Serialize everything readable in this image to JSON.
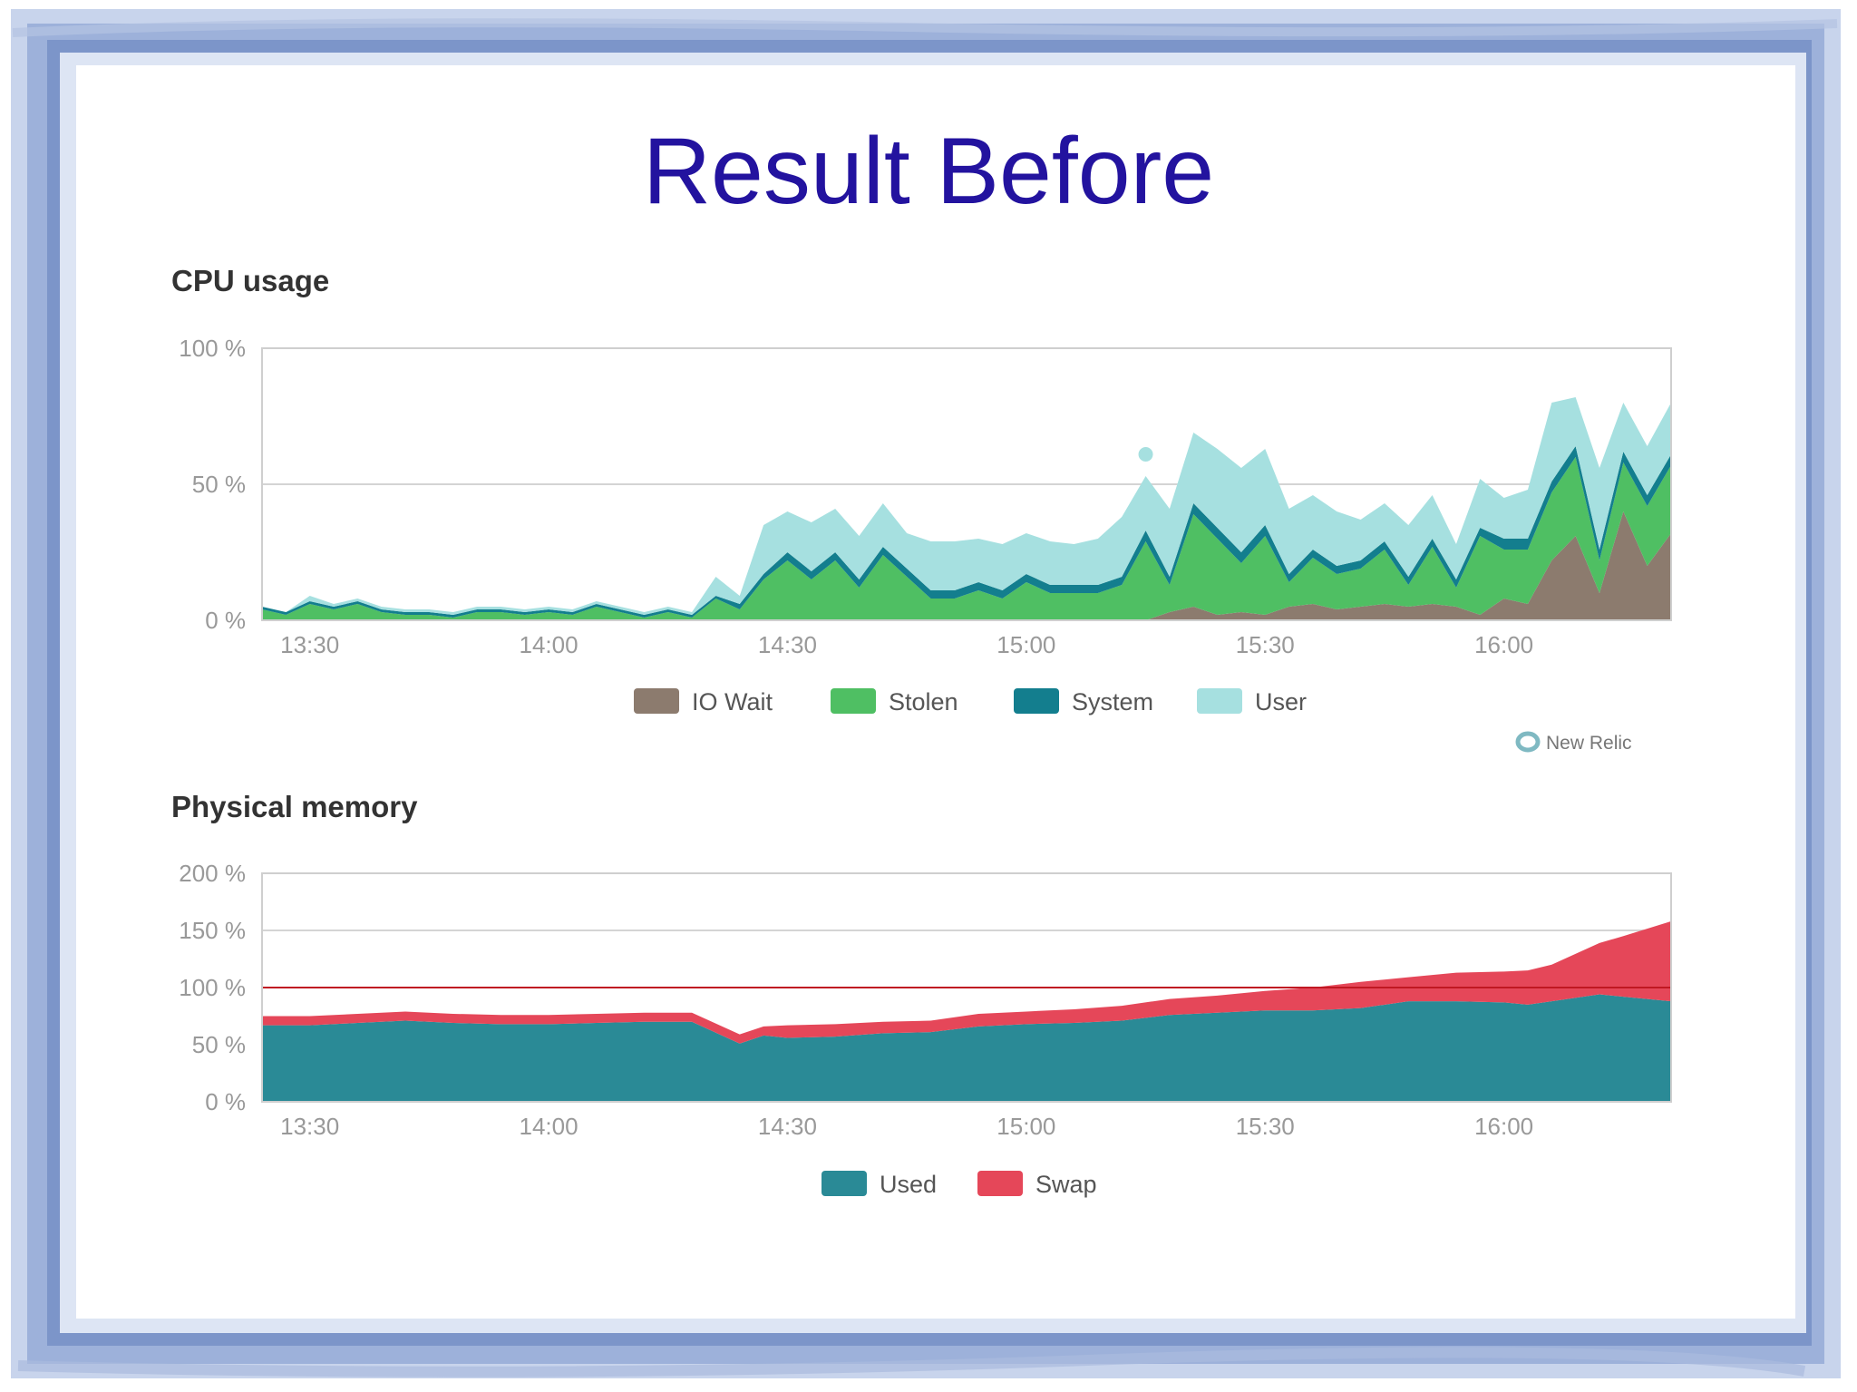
{
  "slide": {
    "title": "Result Before"
  },
  "colors": {
    "io_wait": "#8c7b6e",
    "stolen": "#4fbf63",
    "system": "#137e8e",
    "user": "#a6e0e0",
    "used": "#2a8a96",
    "swap": "#e54759",
    "limit_line": "#c01822",
    "title": "#23139f",
    "frame": "#8fa6d2"
  },
  "branding": {
    "text": "New Relic",
    "icon": "new-relic-ring-icon"
  },
  "chart_data": [
    {
      "type": "area",
      "stacked": true,
      "title": "CPU usage",
      "y_ticks": [
        "0 %",
        "50 %",
        "100 %"
      ],
      "ylim": [
        0,
        100
      ],
      "x_tick_labels": [
        "13:30",
        "14:00",
        "14:30",
        "15:00",
        "15:30",
        "16:00"
      ],
      "x_ticks": [
        "13:30",
        "14:00",
        "14:30",
        "15:00",
        "15:30",
        "16:00"
      ],
      "xlim": [
        "13:24",
        "16:21"
      ],
      "grid": "horizontal",
      "legend": "bottom",
      "x": [
        "13:24",
        "13:27",
        "13:30",
        "13:33",
        "13:36",
        "13:39",
        "13:42",
        "13:45",
        "13:48",
        "13:51",
        "13:54",
        "13:57",
        "14:00",
        "14:03",
        "14:06",
        "14:09",
        "14:12",
        "14:15",
        "14:18",
        "14:21",
        "14:24",
        "14:27",
        "14:30",
        "14:33",
        "14:36",
        "14:39",
        "14:42",
        "14:45",
        "14:48",
        "14:51",
        "14:54",
        "14:57",
        "15:00",
        "15:03",
        "15:06",
        "15:09",
        "15:12",
        "15:15",
        "15:18",
        "15:21",
        "15:24",
        "15:27",
        "15:30",
        "15:33",
        "15:36",
        "15:39",
        "15:42",
        "15:45",
        "15:48",
        "15:51",
        "15:54",
        "15:57",
        "16:00",
        "16:03",
        "16:06",
        "16:09",
        "16:12",
        "16:15",
        "16:18",
        "16:21"
      ],
      "series": [
        {
          "name": "IO Wait",
          "values": [
            0,
            0,
            0,
            0,
            0,
            0,
            0,
            0,
            0,
            0,
            0,
            0,
            0,
            0,
            0,
            0,
            0,
            0,
            0,
            0,
            0,
            0,
            0,
            0,
            0,
            0,
            0,
            0,
            0,
            0,
            0,
            0,
            0,
            0,
            0,
            0,
            0,
            0,
            3,
            5,
            2,
            3,
            2,
            5,
            6,
            4,
            5,
            6,
            5,
            6,
            5,
            2,
            8,
            6,
            22,
            31,
            10,
            40,
            20,
            32
          ]
        },
        {
          "name": "Stolen",
          "values": [
            4,
            2,
            6,
            4,
            6,
            3,
            2,
            2,
            1,
            3,
            3,
            2,
            3,
            2,
            5,
            3,
            1,
            3,
            1,
            8,
            4,
            15,
            22,
            15,
            22,
            12,
            24,
            16,
            8,
            8,
            11,
            8,
            14,
            10,
            10,
            10,
            13,
            29,
            10,
            34,
            28,
            18,
            29,
            9,
            17,
            13,
            14,
            20,
            8,
            21,
            7,
            29,
            18,
            20,
            25,
            29,
            12,
            18,
            22,
            25
          ]
        },
        {
          "name": "System",
          "values": [
            1,
            1,
            1,
            1,
            1,
            1,
            1,
            1,
            1,
            1,
            1,
            1,
            1,
            1,
            1,
            1,
            1,
            1,
            1,
            1,
            2,
            2,
            3,
            3,
            3,
            3,
            3,
            3,
            3,
            3,
            3,
            3,
            3,
            3,
            3,
            3,
            3,
            4,
            3,
            4,
            4,
            4,
            4,
            3,
            3,
            3,
            3,
            3,
            3,
            3,
            3,
            3,
            4,
            4,
            4,
            4,
            4,
            4,
            4,
            4
          ]
        },
        {
          "name": "User",
          "values": [
            0,
            0,
            2,
            1,
            1,
            1,
            1,
            1,
            1,
            1,
            1,
            1,
            1,
            1,
            1,
            1,
            1,
            1,
            1,
            7,
            3,
            18,
            15,
            18,
            16,
            16,
            16,
            13,
            18,
            18,
            16,
            17,
            15,
            16,
            15,
            17,
            22,
            20,
            25,
            26,
            29,
            31,
            28,
            24,
            20,
            20,
            15,
            14,
            19,
            16,
            13,
            18,
            15,
            18,
            29,
            18,
            30,
            18,
            18,
            19
          ]
        }
      ],
      "markers": [
        {
          "x": "15:15",
          "y": 61
        }
      ]
    },
    {
      "type": "area",
      "stacked": true,
      "title": "Physical memory",
      "y_ticks": [
        "0 %",
        "50 %",
        "100 %",
        "150 %",
        "200 %"
      ],
      "ylim": [
        0,
        200
      ],
      "x_tick_labels": [
        "13:30",
        "14:00",
        "14:30",
        "15:00",
        "15:30",
        "16:00"
      ],
      "x_ticks": [
        "13:30",
        "14:00",
        "14:30",
        "15:00",
        "15:30",
        "16:00"
      ],
      "xlim": [
        "13:24",
        "16:21"
      ],
      "grid": "horizontal",
      "legend": "bottom",
      "reference_line": 100,
      "x": [
        "13:24",
        "13:30",
        "13:36",
        "13:42",
        "13:48",
        "13:54",
        "14:00",
        "14:06",
        "14:12",
        "14:18",
        "14:24",
        "14:27",
        "14:30",
        "14:36",
        "14:42",
        "14:48",
        "14:54",
        "15:00",
        "15:06",
        "15:12",
        "15:18",
        "15:24",
        "15:30",
        "15:36",
        "15:42",
        "15:48",
        "15:54",
        "16:00",
        "16:03",
        "16:06",
        "16:12",
        "16:15",
        "16:21"
      ],
      "series": [
        {
          "name": "Used",
          "values": [
            67,
            67,
            69,
            71,
            69,
            68,
            68,
            69,
            70,
            70,
            51,
            58,
            56,
            57,
            60,
            61,
            66,
            68,
            69,
            71,
            76,
            78,
            80,
            80,
            82,
            88,
            88,
            87,
            85,
            88,
            94,
            92,
            88
          ]
        },
        {
          "name": "Swap",
          "values": [
            8,
            8,
            8,
            8,
            8,
            8,
            8,
            8,
            8,
            8,
            8,
            8,
            11,
            11,
            10,
            10,
            11,
            11,
            12,
            13,
            14,
            15,
            17,
            20,
            23,
            21,
            25,
            27,
            30,
            32,
            45,
            53,
            70
          ]
        }
      ]
    }
  ]
}
